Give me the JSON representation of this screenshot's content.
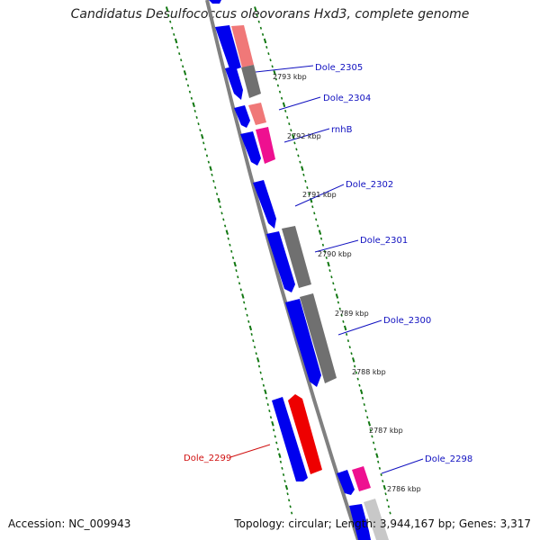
{
  "title": "Candidatus Desulfococcus oleovorans Hxd3, complete genome",
  "footer": {
    "accession": "Accession: NC_009943",
    "summary": "Topology: circular; Length: 3,944,167 bp; Genes: 3,317"
  },
  "kbp_labels": [
    "2793 kbp",
    "2792 kbp",
    "2791 kbp",
    "2790 kbp",
    "2789 kbp",
    "2788 kbp",
    "2787 kbp",
    "2786 kbp"
  ],
  "genes": [
    {
      "name": "Dole_2305",
      "color": "#1010c0"
    },
    {
      "name": "Dole_2304",
      "color": "#1010c0"
    },
    {
      "name": "rnhB",
      "color": "#1010c0"
    },
    {
      "name": "Dole_2302",
      "color": "#1010c0"
    },
    {
      "name": "Dole_2301",
      "color": "#1010c0"
    },
    {
      "name": "Dole_2300",
      "color": "#1010c0"
    },
    {
      "name": "Dole_2299",
      "color": "#d01010"
    },
    {
      "name": "Dole_2298",
      "color": "#1010c0"
    }
  ],
  "colors": {
    "cds_blue": "#0000ee",
    "red_gene": "#ee0000",
    "pink_gene": "#f07878",
    "magenta_gene": "#ee1090",
    "gray_gene": "#707070",
    "light_gray_gene": "#c8c8c8",
    "backbone": "#808080",
    "tick_green": "#117711"
  }
}
